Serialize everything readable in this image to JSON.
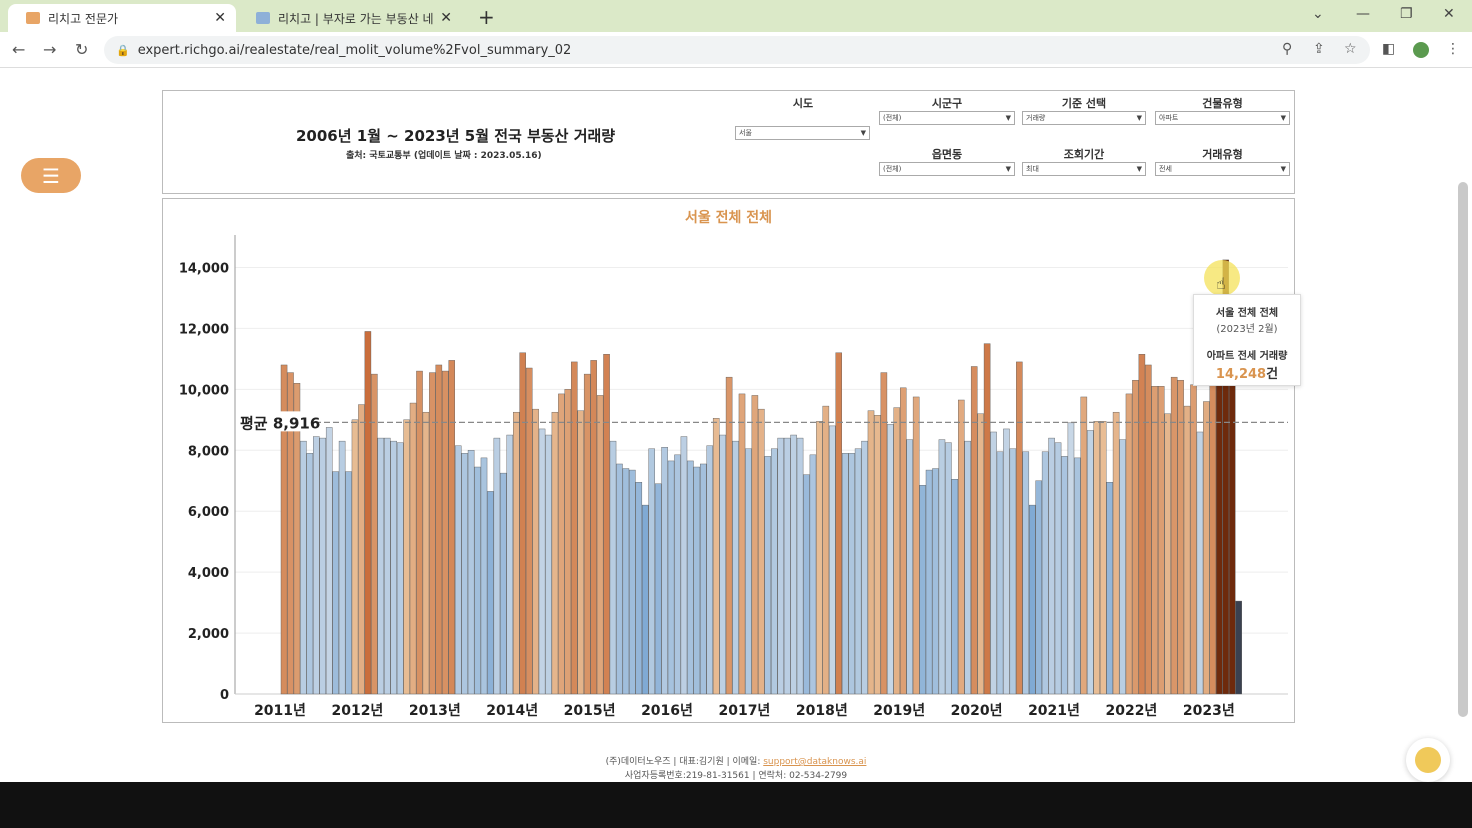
{
  "browser": {
    "tabs": [
      {
        "title": "리치고 전문가",
        "active": true
      },
      {
        "title": "리치고 | 부자로 가는 부동산 네",
        "active": false
      }
    ],
    "url": "expert.richgo.ai/realestate/real_molit_volume%2Fvol_summary_02",
    "icons": [
      "back-icon",
      "forward-icon",
      "reload-icon",
      "lock-icon",
      "zoom-icon",
      "share-icon",
      "star-icon",
      "sidepanel-icon",
      "profile-icon",
      "kebab-icon"
    ]
  },
  "header": {
    "title": "2006년 1월 ~ 2023년 5월 전국 부동산 거래량",
    "source": "출처: 국토교통부 (업데이트 날짜 : 2023.05.16)"
  },
  "filters": {
    "sido": {
      "label": "시도",
      "value": "서울"
    },
    "sigungu": {
      "label": "시군구",
      "value": "(전체)"
    },
    "base": {
      "label": "기준 선택",
      "value": "거래량"
    },
    "building": {
      "label": "건물유형",
      "value": "아파트"
    },
    "eupmyeon": {
      "label": "읍면동",
      "value": "(전체)"
    },
    "period": {
      "label": "조회기간",
      "value": "최대"
    },
    "deal": {
      "label": "거래유형",
      "value": "전세"
    }
  },
  "chart_data": {
    "type": "bar",
    "title": "서울 전체 전체",
    "ylim": [
      0,
      15000
    ],
    "yticks": [
      "0",
      "2,000",
      "4,000",
      "6,000",
      "8,000",
      "10,000",
      "12,000",
      "14,000"
    ],
    "xticks": [
      "2011년",
      "2012년",
      "2013년",
      "2014년",
      "2015년",
      "2016년",
      "2017년",
      "2018년",
      "2019년",
      "2020년",
      "2021년",
      "2022년",
      "2023년"
    ],
    "average": {
      "label": "평균 8,916",
      "value": 8916
    },
    "grid": true,
    "values": [
      10800,
      10550,
      10200,
      8300,
      7900,
      8450,
      8400,
      8750,
      7300,
      8300,
      7300,
      9000,
      9500,
      11900,
      10500,
      8400,
      8400,
      8300,
      8250,
      9000,
      9550,
      10600,
      9250,
      10550,
      10800,
      10600,
      10950,
      8150,
      7900,
      8000,
      7450,
      7750,
      6650,
      8400,
      7250,
      8500,
      9250,
      11200,
      10700,
      9350,
      8700,
      8500,
      9250,
      9850,
      10000,
      10900,
      9300,
      10500,
      10950,
      9800,
      11150,
      8300,
      7550,
      7400,
      7350,
      6950,
      6200,
      8050,
      6900,
      8100,
      7650,
      7850,
      8450,
      7650,
      7450,
      7550,
      8150,
      9050,
      8500,
      10400,
      8300,
      9850,
      8050,
      9800,
      9350,
      7800,
      8050,
      8400,
      8400,
      8500,
      8400,
      7200,
      7850,
      8950,
      9450,
      8800,
      11200,
      7900,
      7900,
      8050,
      8300,
      9300,
      9150,
      10550,
      8850,
      9400,
      10050,
      8350,
      9750,
      6850,
      7350,
      7400,
      8350,
      8250,
      7050,
      9650,
      8300,
      10750,
      9200,
      11500,
      8600,
      7950,
      8700,
      8050,
      10900,
      7950,
      6200,
      7000,
      7950,
      8400,
      8250,
      7800,
      8900,
      7750,
      9750,
      8650,
      8950,
      8950,
      6950,
      9250,
      8350,
      9850,
      10300,
      11150,
      10800,
      10100,
      10100,
      9200,
      10400,
      10300,
      9450,
      10150,
      8600,
      9600,
      10800,
      12000,
      14248,
      12200,
      3050
    ]
  },
  "tooltip": {
    "title": "서울 전체 전체",
    "date": "(2023년 2월)",
    "metric": "아파트 전세 거래량",
    "value": "14,248",
    "unit": "건"
  },
  "footer": {
    "line1_prefix": "(주)데이터노우즈 | 대표:김기원 | 이메일: ",
    "email": "support@dataknows.ai",
    "line2": "사업자등록번호:219-81-31561 | 연락처: 02-534-2799"
  },
  "colors": {
    "accent": "#d9944f",
    "high": "#d9844a",
    "low": "#a9c3da",
    "highlight": "#6e2a0c",
    "last": "#3a4150"
  }
}
